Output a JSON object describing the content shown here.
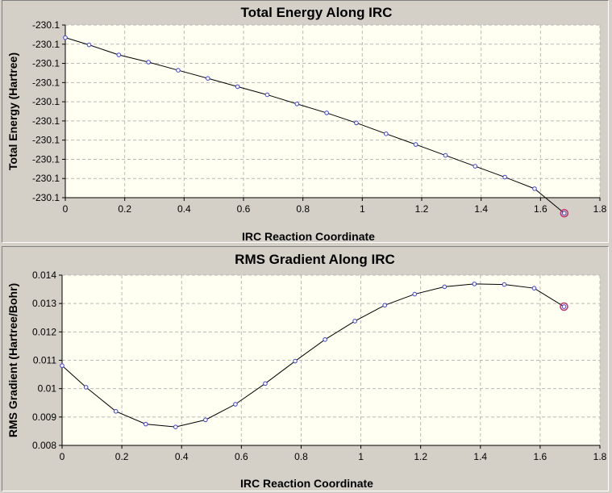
{
  "chart_data": [
    {
      "type": "line",
      "title": "Total Energy Along IRC",
      "xlabel": "IRC Reaction Coordinate",
      "ylabel": "Total Energy (Hartree)",
      "xlim": [
        0,
        1.8
      ],
      "xticks": [
        "0",
        "0.2",
        "0.4",
        "0.6",
        "0.8",
        "1",
        "1.2",
        "1.4",
        "1.6",
        "1.8"
      ],
      "yticks": [
        "-230.1",
        "-230.1",
        "-230.1",
        "-230.1",
        "-230.1",
        "-230.1",
        "-230.1",
        "-230.1",
        "-230.1",
        "-230.1"
      ],
      "ylim": [
        0,
        1
      ],
      "grid": true,
      "legend": "none",
      "x": [
        0,
        0.08,
        0.18,
        0.28,
        0.38,
        0.48,
        0.58,
        0.68,
        0.78,
        0.88,
        0.98,
        1.08,
        1.18,
        1.28,
        1.38,
        1.48,
        1.58,
        1.68
      ],
      "y_relative": [
        0.927,
        0.885,
        0.827,
        0.785,
        0.738,
        0.691,
        0.643,
        0.596,
        0.543,
        0.491,
        0.433,
        0.37,
        0.308,
        0.245,
        0.182,
        0.119,
        0.052,
        -0.09
      ],
      "highlight_index": 17,
      "colors": {
        "line": "#000000",
        "marker": "#3d3dd6",
        "highlight": "#c0306a",
        "plot_bg": "#fffff2"
      }
    },
    {
      "type": "line",
      "title": "RMS Gradient Along IRC",
      "xlabel": "IRC Reaction Coordinate",
      "ylabel": "RMS Gradient (Hartree/Bohr)",
      "xlim": [
        0,
        1.8
      ],
      "ylim": [
        0.008,
        0.014
      ],
      "xticks": [
        "0",
        "0.2",
        "0.4",
        "0.6",
        "0.8",
        "1",
        "1.2",
        "1.4",
        "1.6",
        "1.8"
      ],
      "yticks": [
        "0.008",
        "0.009",
        "0.01",
        "0.011",
        "0.012",
        "0.013",
        "0.014"
      ],
      "grid": true,
      "legend": "none",
      "x": [
        0,
        0.08,
        0.18,
        0.28,
        0.38,
        0.48,
        0.58,
        0.68,
        0.78,
        0.88,
        0.98,
        1.08,
        1.18,
        1.28,
        1.38,
        1.48,
        1.58,
        1.68
      ],
      "values": [
        0.01081,
        0.01005,
        0.0092,
        0.00875,
        0.00865,
        0.0089,
        0.00945,
        0.01018,
        0.01097,
        0.01173,
        0.01238,
        0.01294,
        0.01333,
        0.01359,
        0.01369,
        0.01367,
        0.01354,
        0.01289
      ],
      "highlight_index": 17,
      "colors": {
        "line": "#000000",
        "marker": "#3d3dd6",
        "highlight": "#c0306a",
        "plot_bg": "#fffff2"
      }
    }
  ]
}
